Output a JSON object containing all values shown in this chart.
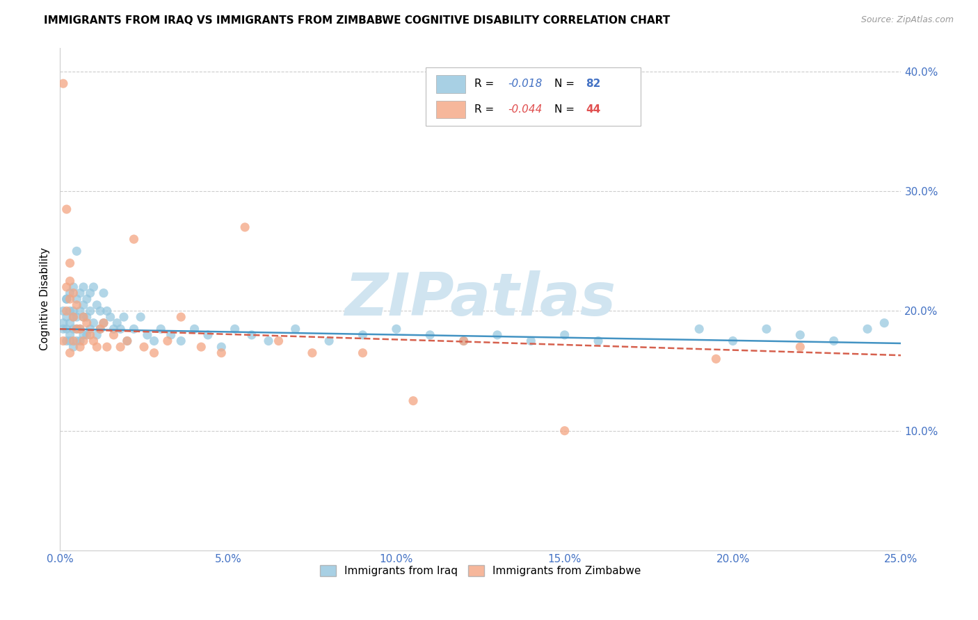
{
  "title": "IMMIGRANTS FROM IRAQ VS IMMIGRANTS FROM ZIMBABWE COGNITIVE DISABILITY CORRELATION CHART",
  "source": "Source: ZipAtlas.com",
  "ylabel": "Cognitive Disability",
  "xlim": [
    0.0,
    0.25
  ],
  "ylim": [
    0.0,
    0.42
  ],
  "xticks": [
    0.0,
    0.05,
    0.1,
    0.15,
    0.2,
    0.25
  ],
  "yticks": [
    0.1,
    0.2,
    0.3,
    0.4
  ],
  "ytick_labels": [
    "10.0%",
    "20.0%",
    "30.0%",
    "40.0%"
  ],
  "xtick_labels": [
    "0.0%",
    "5.0%",
    "10.0%",
    "15.0%",
    "20.0%",
    "25.0%"
  ],
  "iraq_R": -0.018,
  "iraq_N": 82,
  "zimbabwe_R": -0.044,
  "zimbabwe_N": 44,
  "iraq_color": "#92c5de",
  "zimbabwe_color": "#f4a582",
  "iraq_label": "Immigrants from Iraq",
  "zimbabwe_label": "Immigrants from Zimbabwe",
  "watermark": "ZIPatlas",
  "watermark_color": "#d0e4f0",
  "iraq_line_color": "#4393c3",
  "zimbabwe_line_color": "#d6604d",
  "iraq_points_x": [
    0.001,
    0.001,
    0.001,
    0.002,
    0.002,
    0.002,
    0.002,
    0.002,
    0.003,
    0.003,
    0.003,
    0.003,
    0.003,
    0.004,
    0.004,
    0.004,
    0.004,
    0.004,
    0.005,
    0.005,
    0.005,
    0.005,
    0.005,
    0.006,
    0.006,
    0.006,
    0.006,
    0.007,
    0.007,
    0.007,
    0.007,
    0.008,
    0.008,
    0.008,
    0.009,
    0.009,
    0.009,
    0.01,
    0.01,
    0.011,
    0.011,
    0.012,
    0.012,
    0.013,
    0.013,
    0.014,
    0.015,
    0.016,
    0.017,
    0.018,
    0.019,
    0.02,
    0.022,
    0.024,
    0.026,
    0.028,
    0.03,
    0.033,
    0.036,
    0.04,
    0.044,
    0.048,
    0.052,
    0.057,
    0.062,
    0.07,
    0.08,
    0.09,
    0.1,
    0.11,
    0.12,
    0.13,
    0.14,
    0.15,
    0.16,
    0.19,
    0.2,
    0.21,
    0.22,
    0.23,
    0.24,
    0.245
  ],
  "iraq_points_y": [
    0.19,
    0.2,
    0.185,
    0.21,
    0.195,
    0.185,
    0.175,
    0.21,
    0.2,
    0.215,
    0.19,
    0.18,
    0.175,
    0.22,
    0.2,
    0.195,
    0.185,
    0.17,
    0.25,
    0.21,
    0.195,
    0.185,
    0.175,
    0.215,
    0.2,
    0.185,
    0.175,
    0.22,
    0.205,
    0.195,
    0.18,
    0.21,
    0.195,
    0.18,
    0.215,
    0.2,
    0.185,
    0.22,
    0.19,
    0.205,
    0.18,
    0.2,
    0.185,
    0.215,
    0.19,
    0.2,
    0.195,
    0.185,
    0.19,
    0.185,
    0.195,
    0.175,
    0.185,
    0.195,
    0.18,
    0.175,
    0.185,
    0.18,
    0.175,
    0.185,
    0.18,
    0.17,
    0.185,
    0.18,
    0.175,
    0.185,
    0.175,
    0.18,
    0.185,
    0.18,
    0.175,
    0.18,
    0.175,
    0.18,
    0.175,
    0.185,
    0.175,
    0.185,
    0.18,
    0.175,
    0.185,
    0.19
  ],
  "zimbabwe_points_x": [
    0.001,
    0.001,
    0.002,
    0.002,
    0.002,
    0.003,
    0.003,
    0.003,
    0.003,
    0.004,
    0.004,
    0.004,
    0.005,
    0.005,
    0.006,
    0.006,
    0.007,
    0.007,
    0.008,
    0.009,
    0.01,
    0.011,
    0.012,
    0.013,
    0.014,
    0.016,
    0.018,
    0.02,
    0.022,
    0.025,
    0.028,
    0.032,
    0.036,
    0.042,
    0.048,
    0.055,
    0.065,
    0.075,
    0.09,
    0.105,
    0.12,
    0.15,
    0.195,
    0.22
  ],
  "zimbabwe_points_y": [
    0.39,
    0.175,
    0.285,
    0.22,
    0.2,
    0.24,
    0.225,
    0.21,
    0.165,
    0.215,
    0.195,
    0.175,
    0.205,
    0.185,
    0.185,
    0.17,
    0.195,
    0.175,
    0.19,
    0.18,
    0.175,
    0.17,
    0.185,
    0.19,
    0.17,
    0.18,
    0.17,
    0.175,
    0.26,
    0.17,
    0.165,
    0.175,
    0.195,
    0.17,
    0.165,
    0.27,
    0.175,
    0.165,
    0.165,
    0.125,
    0.175,
    0.1,
    0.16,
    0.17
  ]
}
